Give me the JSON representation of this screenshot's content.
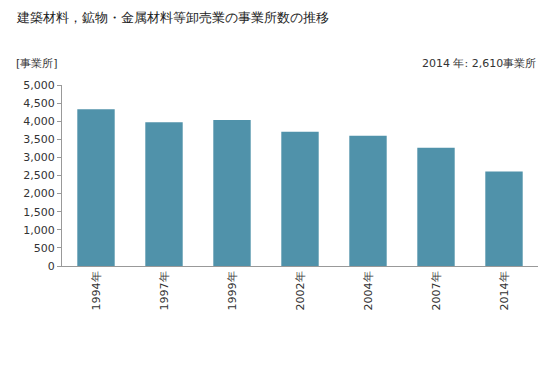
{
  "chart_data": {
    "type": "bar",
    "title": "建築材料，鉱物・金属材料等卸売業の事業所数の推移",
    "y_label": "[事業所]",
    "annotations": [
      {
        "text": "2014 年: 2,610事業所"
      }
    ],
    "categories": [
      "1994年",
      "1997年",
      "1999年",
      "2002年",
      "2004年",
      "2007年",
      "2014年"
    ],
    "values": [
      4330,
      3970,
      4030,
      3710,
      3600,
      3270,
      2610
    ],
    "color": "#5092aa",
    "ylim": [
      0,
      5000
    ],
    "yticks": [
      0,
      500,
      {
        "value": 1000,
        "label": "1,000"
      },
      {
        "value": 1500,
        "label": "1,500"
      },
      {
        "value": 2000,
        "label": "2,000"
      },
      {
        "value": 2500,
        "label": "2,500"
      },
      {
        "value": 3000,
        "label": "3,000"
      },
      {
        "value": 3500,
        "label": "3,500"
      },
      {
        "value": 4000,
        "label": "4,000"
      },
      {
        "value": 4500,
        "label": "4,500"
      },
      {
        "value": 5000,
        "label": "5,000"
      }
    ],
    "grid": false
  }
}
